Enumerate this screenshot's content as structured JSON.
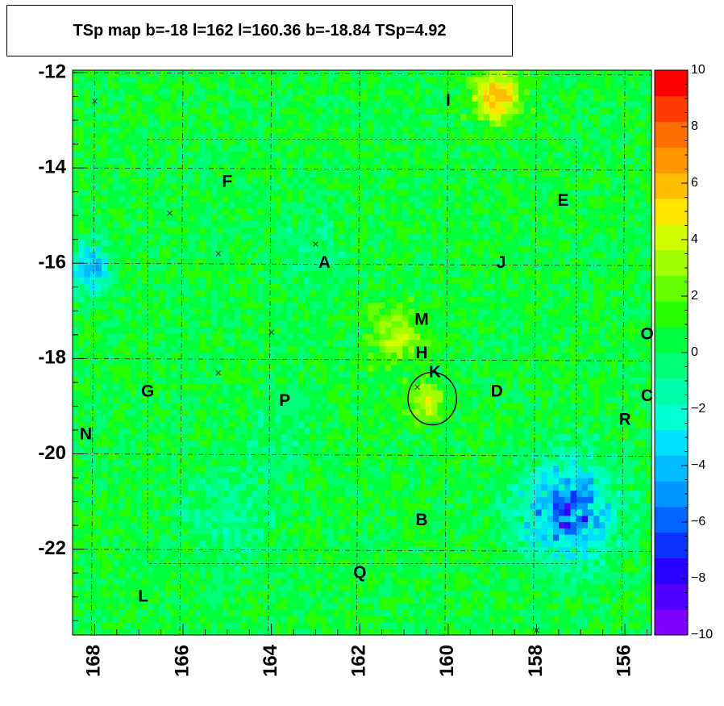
{
  "chart_data": {
    "type": "heatmap",
    "title": "TSp map b=-18 l=162 l=160.36 b=-18.84 TSp=4.92",
    "x_axis": {
      "range": [
        168.5,
        155.4
      ],
      "reversed": true,
      "ticks": [
        168,
        166,
        164,
        162,
        160,
        158,
        156
      ],
      "tick_labels": [
        "168",
        "166",
        "164",
        "162",
        "160",
        "158",
        "156"
      ],
      "label": ""
    },
    "y_axis": {
      "range": [
        -23.8,
        -11.95
      ],
      "ticks": [
        -12,
        -14,
        -16,
        -18,
        -20,
        -22
      ],
      "tick_labels": [
        "-12",
        "-14",
        "-16",
        "-18",
        "-20",
        "-22"
      ],
      "label": ""
    },
    "z_axis": {
      "range": [
        -10,
        10
      ],
      "ticks": [
        10,
        8,
        6,
        4,
        2,
        0,
        -2,
        -4,
        -6,
        -8,
        -10
      ],
      "tick_labels": [
        "10",
        "8",
        "6",
        "4",
        "2",
        "0",
        "−2",
        "−4",
        "−6",
        "−8",
        "−10"
      ],
      "palette": [
        "#7f00ff",
        "#5000ff",
        "#2800ff",
        "#0a32ff",
        "#0064ff",
        "#0096ff",
        "#00bcff",
        "#00e1ff",
        "#00ffd2",
        "#00ffaa",
        "#00ff78",
        "#00ff3c",
        "#28ff00",
        "#64ff00",
        "#a0ff00",
        "#d2ff00",
        "#ffe600",
        "#ffbe00",
        "#ff9600",
        "#ff6e00",
        "#ff3c00",
        "#ff0000"
      ]
    },
    "background_value": 0.5,
    "hotspots": [
      {
        "l": 157.3,
        "b": -21.2,
        "value": -6,
        "extent": 1.0
      },
      {
        "l": 168.1,
        "b": -16.1,
        "value": -4.5,
        "extent": 0.5
      },
      {
        "l": 158.9,
        "b": -12.5,
        "value": 6,
        "extent": 0.5
      },
      {
        "l": 160.5,
        "b": -18.9,
        "value": 3.5,
        "extent": 0.4
      },
      {
        "l": 165.0,
        "b": -21.3,
        "value": -1.5,
        "extent": 1.0
      },
      {
        "l": 163.0,
        "b": -15.7,
        "value": -1.0,
        "extent": 0.8
      },
      {
        "l": 161.2,
        "b": -17.5,
        "value": 3.0,
        "extent": 0.6
      },
      {
        "l": 163.8,
        "b": -19.6,
        "value": -1.0,
        "extent": 0.7
      }
    ],
    "circle": {
      "l": 160.36,
      "b": -18.84,
      "radius_deg": 0.55
    },
    "source_labels": [
      {
        "text": "I",
        "l": 160.0,
        "b": -12.6
      },
      {
        "text": "F",
        "l": 165.0,
        "b": -14.3
      },
      {
        "text": "E",
        "l": 157.4,
        "b": -14.7
      },
      {
        "text": "A",
        "l": 162.8,
        "b": -16.0
      },
      {
        "text": "J",
        "l": 158.8,
        "b": -16.0
      },
      {
        "text": "M",
        "l": 160.6,
        "b": -17.2
      },
      {
        "text": "O",
        "l": 155.5,
        "b": -17.5
      },
      {
        "text": "H",
        "l": 160.6,
        "b": -17.9
      },
      {
        "text": "K",
        "l": 160.3,
        "b": -18.3
      },
      {
        "text": "G",
        "l": 166.8,
        "b": -18.7
      },
      {
        "text": "P",
        "l": 163.7,
        "b": -18.9
      },
      {
        "text": "D",
        "l": 158.9,
        "b": -18.7
      },
      {
        "text": "C",
        "l": 155.5,
        "b": -18.8
      },
      {
        "text": "R",
        "l": 156.0,
        "b": -19.3
      },
      {
        "text": "N",
        "l": 168.2,
        "b": -19.6
      },
      {
        "text": "B",
        "l": 160.6,
        "b": -21.4
      },
      {
        "text": "Q",
        "l": 162.0,
        "b": -22.5
      },
      {
        "text": "L",
        "l": 166.9,
        "b": -23.0
      }
    ],
    "cross_markers": [
      {
        "l": 168.0,
        "b": -12.6
      },
      {
        "l": 166.3,
        "b": -14.95
      },
      {
        "l": 165.2,
        "b": -15.8
      },
      {
        "l": 163.0,
        "b": -15.6
      },
      {
        "l": 164.0,
        "b": -17.45
      },
      {
        "l": 165.2,
        "b": -18.3
      },
      {
        "l": 160.7,
        "b": -18.6
      },
      {
        "l": 158.0,
        "b": -23.7
      }
    ],
    "grid": true
  }
}
